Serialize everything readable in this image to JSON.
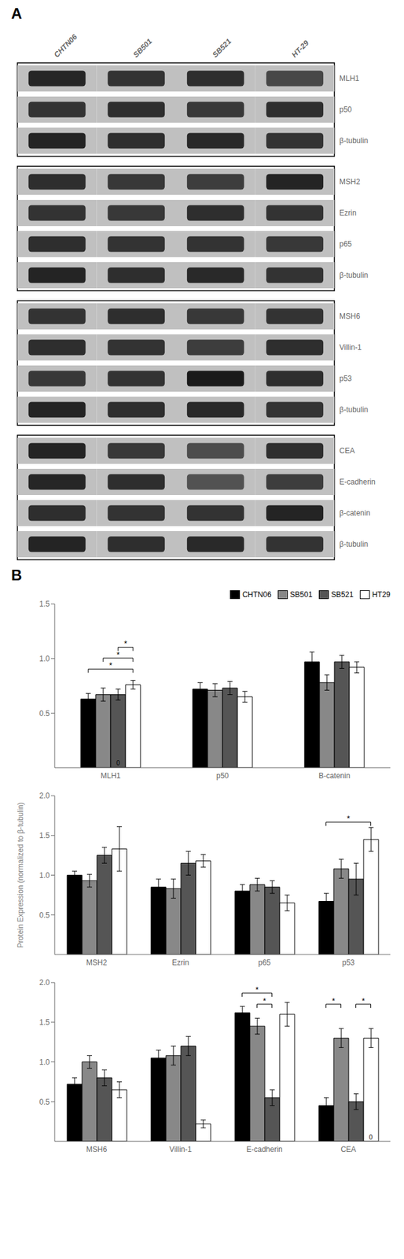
{
  "chart_data": [
    {
      "type": "blot",
      "title": "A",
      "categories": [
        "CHTN06",
        "SB501",
        "SB521",
        "HT-29"
      ],
      "rows": [
        "MLH1",
        "p50",
        "β-tubulin"
      ],
      "cells": [
        [
          0.15,
          0.2,
          0.18,
          0.28
        ],
        [
          0.2,
          0.18,
          0.22,
          0.18
        ],
        [
          0.14,
          0.18,
          0.16,
          0.2
        ]
      ]
    },
    {
      "type": "blot",
      "categories": [
        "CHTN06",
        "SB501",
        "SB521",
        "HT-29"
      ],
      "rows": [
        "MSH2",
        "Ezrin",
        "p65",
        "β-tubulin"
      ],
      "cells": [
        [
          0.18,
          0.22,
          0.24,
          0.14
        ],
        [
          0.2,
          0.22,
          0.18,
          0.2
        ],
        [
          0.18,
          0.2,
          0.2,
          0.22
        ],
        [
          0.14,
          0.18,
          0.16,
          0.2
        ]
      ],
      "tick_labels": "y"
    },
    {
      "type": "blot",
      "categories": [
        "CHTN06",
        "SB501",
        "SB521",
        "HT-29"
      ],
      "rows": [
        "MSH6",
        "Villin-1",
        "p53",
        "β-tubulin"
      ],
      "cells": [
        [
          0.2,
          0.18,
          0.22,
          0.2
        ],
        [
          0.18,
          0.2,
          0.24,
          0.18
        ],
        [
          0.22,
          0.2,
          0.1,
          0.18
        ],
        [
          0.14,
          0.18,
          0.16,
          0.2
        ]
      ],
      "tick_labels": "y"
    },
    {
      "type": "blot",
      "categories": [
        "CHTN06",
        "SB501",
        "SB521",
        "HT-29"
      ],
      "rows": [
        "CEA",
        "E-cadherin",
        "β-catenin",
        "β-tubulin"
      ],
      "cells": [
        [
          0.14,
          0.22,
          0.3,
          0.18
        ],
        [
          0.15,
          0.18,
          0.32,
          0.24
        ],
        [
          0.18,
          0.2,
          0.2,
          0.14
        ],
        [
          0.14,
          0.18,
          0.16,
          0.2
        ]
      ],
      "tick_labels": "y"
    },
    {
      "type": "bar",
      "title": "B",
      "categories": [
        "MLH1",
        "p50",
        "B-catenin"
      ],
      "series": [
        {
          "name": "CHTN06",
          "color": "black",
          "values": [
            0.63,
            0.72,
            0.97
          ],
          "errors": [
            0.05,
            0.06,
            0.09
          ]
        },
        {
          "name": "SB501",
          "color": "#888888",
          "values": [
            0.67,
            0.71,
            0.78
          ],
          "errors": [
            0.06,
            0.06,
            0.07
          ]
        },
        {
          "name": "SB521",
          "color": "#555555",
          "values": [
            0.67,
            0.73,
            0.97
          ],
          "errors": [
            0.05,
            0.06,
            0.06
          ]
        },
        {
          "name": "HT29",
          "color": "white",
          "values": [
            0.76,
            0.65,
            0.92
          ],
          "errors": [
            0.04,
            0.05,
            0.05
          ]
        }
      ],
      "ylim": [
        0,
        1.5
      ],
      "yticks": [
        0.5,
        {
          "value": 1,
          "label": "1.0"
        },
        1.5
      ],
      "grid": false,
      "legend": "upper right",
      "annotations": [
        {
          "text": "*",
          "category": "MLH1",
          "from": "CHTN06",
          "to": "HT29",
          "y": 0.87
        },
        {
          "text": "*",
          "category": "MLH1",
          "from": "SB501",
          "to": "HT29",
          "y": 0.97
        },
        {
          "text": "*",
          "category": "MLH1",
          "from": "SB521",
          "to": "HT29",
          "y": 1.07
        },
        {
          "text": "0",
          "category": "MLH1",
          "series": "SB521",
          "y": 0.01
        }
      ]
    },
    {
      "type": "bar",
      "categories": [
        "MSH2",
        "Ezrin",
        "p65",
        "p53"
      ],
      "y_label": "Protein Expression (normalized to β-tubulin)",
      "series": [
        {
          "name": "CHTN06",
          "color": "black",
          "values": [
            1.0,
            0.85,
            0.8,
            0.67
          ],
          "errors": [
            0.05,
            0.1,
            0.08,
            0.1
          ]
        },
        {
          "name": "SB501",
          "color": "#888888",
          "values": [
            0.93,
            0.83,
            0.88,
            1.08
          ],
          "errors": [
            0.08,
            0.12,
            0.08,
            0.12
          ]
        },
        {
          "name": "SB521",
          "color": "#555555",
          "values": [
            1.25,
            1.15,
            0.85,
            0.95
          ],
          "errors": [
            0.1,
            0.15,
            0.08,
            0.2
          ]
        },
        {
          "name": "HT29",
          "color": "white",
          "values": [
            1.33,
            1.18,
            0.65,
            1.45
          ],
          "errors": [
            0.28,
            0.08,
            0.1,
            0.15
          ]
        }
      ],
      "ylim": [
        0,
        2.0
      ],
      "yticks": [
        0.5,
        {
          "value": 1,
          "label": "1.0"
        },
        1.5,
        {
          "value": 2,
          "label": "2.0"
        }
      ],
      "grid": false,
      "annotations": [
        {
          "text": "*",
          "category": "p53",
          "from": "CHTN06",
          "to": "HT29",
          "y": 1.62
        }
      ]
    },
    {
      "type": "bar",
      "categories": [
        "MSH6",
        "Villin-1",
        "E-cadherin",
        "CEA"
      ],
      "series": [
        {
          "name": "CHTN06",
          "color": "black",
          "values": [
            0.72,
            1.05,
            1.62,
            0.45
          ],
          "errors": [
            0.08,
            0.1,
            0.08,
            0.1
          ]
        },
        {
          "name": "SB501",
          "color": "#888888",
          "values": [
            1.0,
            1.08,
            1.45,
            1.3
          ],
          "errors": [
            0.08,
            0.12,
            0.1,
            0.12
          ]
        },
        {
          "name": "SB521",
          "color": "#555555",
          "values": [
            0.8,
            1.2,
            0.55,
            0.5
          ],
          "errors": [
            0.1,
            0.12,
            0.1,
            0.1
          ]
        },
        {
          "name": "HT29",
          "color": "white",
          "values": [
            0.65,
            0.22,
            1.6,
            1.3
          ],
          "errors": [
            0.1,
            0.05,
            0.15,
            0.12
          ]
        }
      ],
      "ylim": [
        0,
        2.0
      ],
      "yticks": [
        0.5,
        {
          "value": 1,
          "label": "1.0"
        },
        1.5,
        {
          "value": 2,
          "label": "2.0"
        }
      ],
      "grid": false,
      "annotations": [
        {
          "text": "*",
          "category": "E-cadherin",
          "from": "CHTN06",
          "to": "SB521",
          "y": 1.82
        },
        {
          "text": "*",
          "category": "E-cadherin",
          "from": "SB501",
          "to": "SB521",
          "y": 1.68
        },
        {
          "text": "*",
          "category": "CEA",
          "from": "CHTN06",
          "to": "SB501",
          "y": 1.68
        },
        {
          "text": "*",
          "category": "CEA",
          "from": "SB521",
          "to": "HT29",
          "y": 1.68
        },
        {
          "text": "0",
          "category": "CEA",
          "series": "HT29",
          "y": 0.01
        }
      ]
    }
  ]
}
